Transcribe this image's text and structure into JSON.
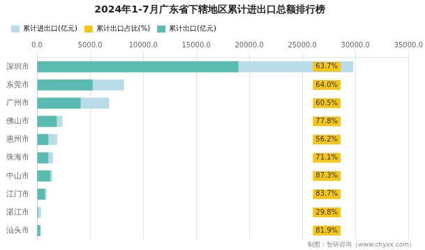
{
  "chart_data": {
    "type": "bar",
    "orientation": "horizontal",
    "title": "2024年1-7月广东省下辖地区累计进出口总额排行榜",
    "footer": "制图：智研咨询（www.chyxx.com）",
    "categories": [
      "深圳市",
      "东莞市",
      "广州市",
      "佛山市",
      "惠州市",
      "珠海市",
      "中山市",
      "江门市",
      "湛江市",
      "汕头市"
    ],
    "series": [
      {
        "name": "累计进出口(亿元)",
        "color": "#b8dce8",
        "values": [
          29800,
          8200,
          6800,
          2400,
          1900,
          1500,
          1450,
          900,
          380,
          370
        ]
      },
      {
        "name": "累计出口占比(%)",
        "color": "#f5c518",
        "type": "label",
        "values": [
          63.7,
          64.0,
          60.5,
          77.8,
          56.2,
          71.1,
          87.3,
          83.7,
          29.8,
          81.9
        ],
        "value_labels": [
          "63.7%",
          "64.0%",
          "60.5%",
          "77.8%",
          "56.2%",
          "71.1%",
          "87.3%",
          "83.7%",
          "29.8%",
          "81.9%"
        ]
      },
      {
        "name": "累计出口(亿元)",
        "color": "#5abcb0",
        "values": [
          18983,
          5248,
          4114,
          1867,
          1068,
          1067,
          1264,
          753,
          113,
          303
        ]
      }
    ],
    "xlim": [
      0,
      35000
    ],
    "xticks": [
      {
        "value": 0,
        "label": "0.0"
      },
      {
        "value": 5000,
        "label": "5000.0"
      },
      {
        "value": 10000,
        "label": "10000.0"
      },
      {
        "value": 15000,
        "label": "15000.0"
      },
      {
        "value": 20000,
        "label": "20000.0"
      },
      {
        "value": 25000,
        "label": "25000.0"
      },
      {
        "value": 30000,
        "label": "30000.0"
      },
      {
        "value": 35000,
        "label": "35000.0"
      }
    ],
    "grid": true,
    "legend": "top-left"
  }
}
